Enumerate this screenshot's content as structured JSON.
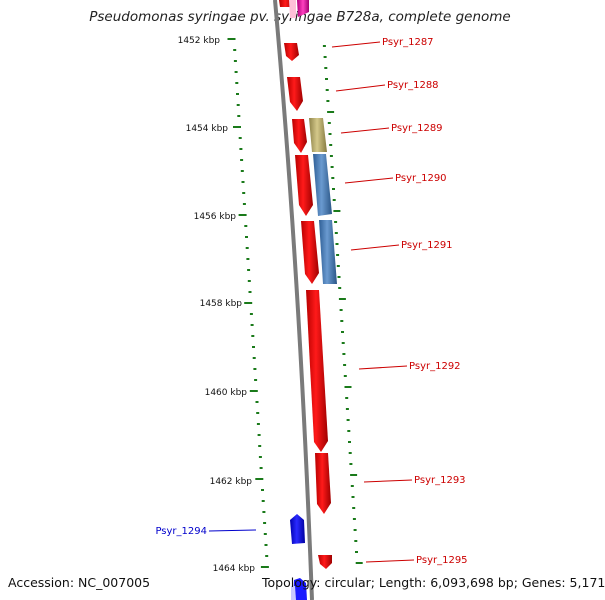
{
  "title": "Pseudomonas syringae pv. syringae B728a, complete genome",
  "footer": {
    "accession": "Accession: NC_007005",
    "summary": "Topology: circular; Length: 6,093,698 bp; Genes: 5,171"
  },
  "ruler": {
    "unit": "kbp",
    "labels": [
      "1452 kbp",
      "1454 kbp",
      "1456 kbp",
      "1458 kbp",
      "1460 kbp",
      "1462 kbp",
      "1464 kbp"
    ],
    "tick_color": "#1a7a1a"
  },
  "colors": {
    "forward_gene": "#ff0000",
    "reverse_gene": "#0000ff",
    "forward_label": "#cc0000",
    "reverse_label": "#0000cc",
    "backbone": "#808080",
    "blue_feature": "#4a80b8",
    "tan_feature": "#b8aa66"
  },
  "genes": [
    {
      "name": "Psyr_1287",
      "strand": "forward"
    },
    {
      "name": "Psyr_1288",
      "strand": "forward"
    },
    {
      "name": "Psyr_1289",
      "strand": "forward"
    },
    {
      "name": "Psyr_1290",
      "strand": "forward"
    },
    {
      "name": "Psyr_1291",
      "strand": "forward"
    },
    {
      "name": "Psyr_1292",
      "strand": "forward"
    },
    {
      "name": "Psyr_1293",
      "strand": "forward"
    },
    {
      "name": "Psyr_1294",
      "strand": "reverse"
    },
    {
      "name": "Psyr_1295",
      "strand": "forward"
    }
  ]
}
